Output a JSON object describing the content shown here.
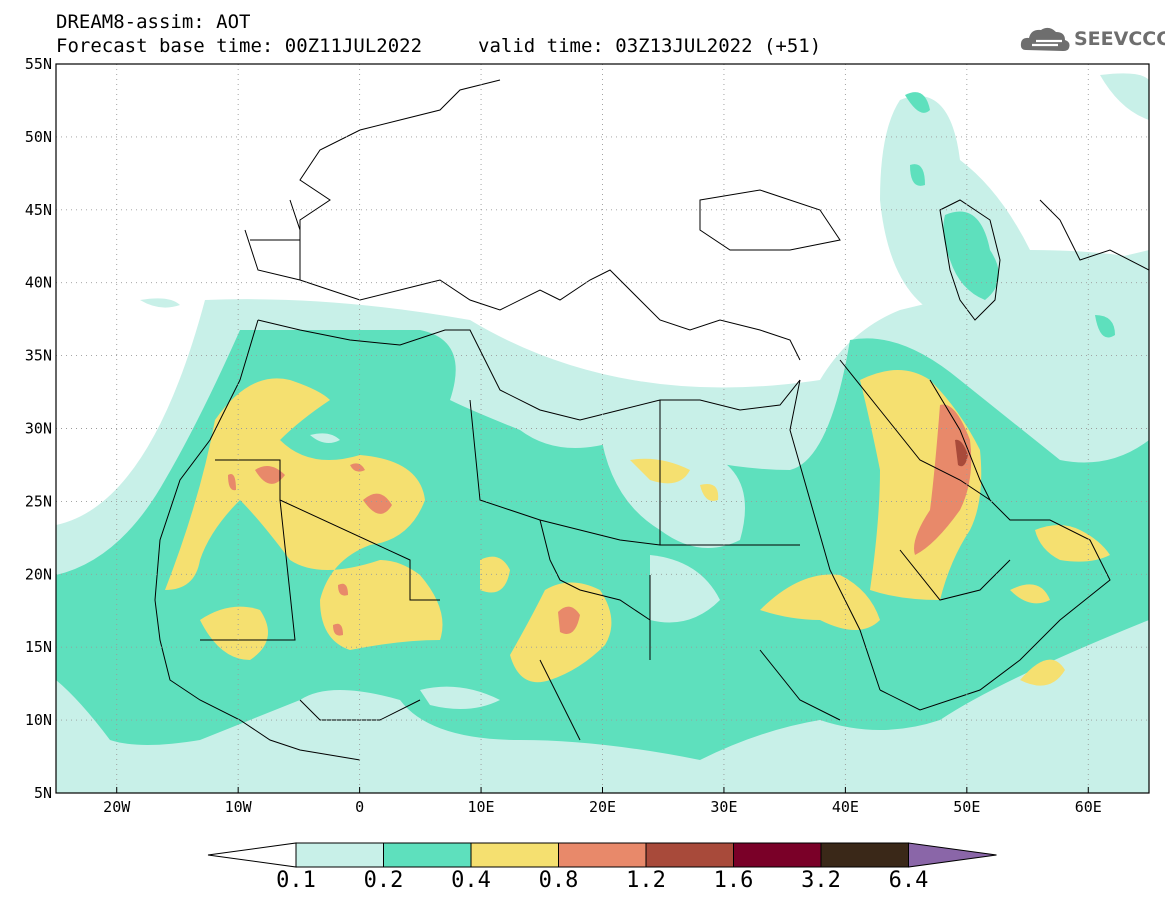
{
  "header": {
    "line1": "DREAM8-assim: AOT",
    "line2": "Forecast base time: 00Z11JUL2022",
    "line2b": "valid time: 03Z13JUL2022 (+51)",
    "logo_text": "SEEVCCC"
  },
  "map": {
    "lat_labels": [
      "55N",
      "50N",
      "45N",
      "40N",
      "35N",
      "30N",
      "25N",
      "20N",
      "15N",
      "10N",
      "5N"
    ],
    "lon_labels": [
      "20W",
      "10W",
      "0",
      "10E",
      "20E",
      "30E",
      "40E",
      "50E",
      "60E"
    ],
    "lon_range": [
      -25,
      65
    ],
    "lat_range": [
      5,
      55
    ]
  },
  "colorbar": {
    "labels": [
      "0.1",
      "0.2",
      "0.4",
      "0.8",
      "1.2",
      "1.6",
      "3.2",
      "6.4"
    ],
    "colors": [
      "#ffffff",
      "#c8f0e8",
      "#5ee0bd",
      "#f5e070",
      "#e8896a",
      "#a84a3a",
      "#7a0028",
      "#3a2818",
      "#8a66a8"
    ]
  }
}
